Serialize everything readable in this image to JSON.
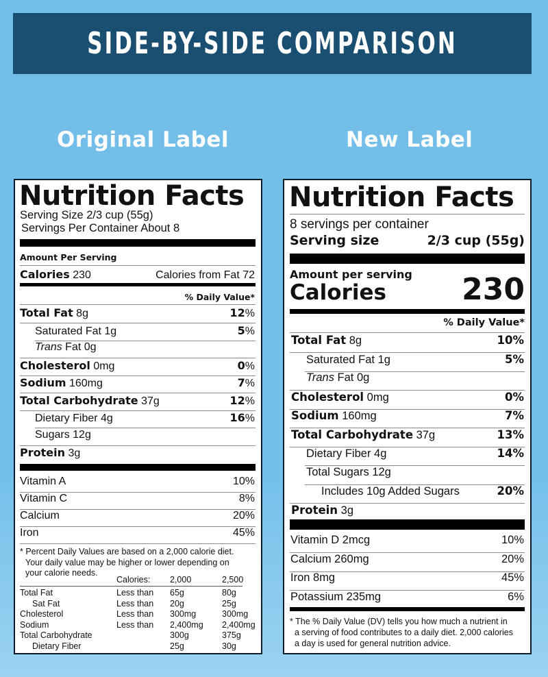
{
  "header": {
    "title": "SIDE-BY-SIDE COMPARISON"
  },
  "columns": {
    "original_title": "Original Label",
    "new_title": "New Label"
  },
  "colors": {
    "background": "#72bee9",
    "header_bar": "#1b4f72",
    "label_bg": "#ffffff",
    "text": "#111111"
  },
  "original": {
    "title": "Nutrition Facts",
    "serving_size": "Serving Size 2/3 cup (55g)",
    "servings_per_container": "Servings Per Container About 8",
    "amount_per_serving": "Amount Per Serving",
    "calories_label": "Calories",
    "calories_value": "230",
    "calories_from_fat": "Calories from Fat 72",
    "dv_header": "% Daily Value*",
    "nutrients": [
      {
        "name": "Total Fat",
        "amount": "8g",
        "dv": "12",
        "bold": true,
        "indent": 0
      },
      {
        "name": "Saturated Fat",
        "amount": "1g",
        "dv": "5",
        "bold": false,
        "indent": 1
      },
      {
        "name": "Trans",
        "name_rest": "Fat",
        "amount": "0g",
        "dv": "",
        "bold": false,
        "indent": 1,
        "italic": true
      },
      {
        "name": "Cholesterol",
        "amount": "0mg",
        "dv": "0",
        "bold": true,
        "indent": 0
      },
      {
        "name": "Sodium",
        "amount": "160mg",
        "dv": "7",
        "bold": true,
        "indent": 0
      },
      {
        "name": "Total Carbohydrate",
        "amount": "37g",
        "dv": "12",
        "bold": true,
        "indent": 0
      },
      {
        "name": "Dietary Fiber",
        "amount": "4g",
        "dv": "16",
        "bold": false,
        "indent": 1
      },
      {
        "name": "Sugars",
        "amount": "12g",
        "dv": "",
        "bold": false,
        "indent": 1
      },
      {
        "name": "Protein",
        "amount": "3g",
        "dv": "",
        "bold": true,
        "indent": 0
      }
    ],
    "pct_sign": "%",
    "vitamins": [
      {
        "name": "Vitamin A",
        "dv": "10%"
      },
      {
        "name": "Vitamin C",
        "dv": "8%"
      },
      {
        "name": "Calcium",
        "dv": "20%"
      },
      {
        "name": "Iron",
        "dv": "45%"
      }
    ],
    "footnote_lines": [
      "* Percent Daily Values are based on a 2,000 calorie diet.",
      "Your daily value may be higher or lower depending on",
      "your calorie needs."
    ],
    "table_header": {
      "label": "Calories:",
      "c1": "2,000",
      "c2": "2,500"
    },
    "table_rows": [
      {
        "name": "Total Fat",
        "cond": "Less than",
        "c1": "65g",
        "c2": "80g",
        "indent": false
      },
      {
        "name": "Sat Fat",
        "cond": "Less than",
        "c1": "20g",
        "c2": "25g",
        "indent": true
      },
      {
        "name": "Cholesterol",
        "cond": "Less than",
        "c1": "300mg",
        "c2": "300mg",
        "indent": false
      },
      {
        "name": "Sodium",
        "cond": "Less than",
        "c1": "2,400mg",
        "c2": "2,400mg",
        "indent": false
      },
      {
        "name": "Total Carbohydrate",
        "cond": "",
        "c1": "300g",
        "c2": "375g",
        "indent": false
      },
      {
        "name": "Dietary Fiber",
        "cond": "",
        "c1": "25g",
        "c2": "30g",
        "indent": true
      }
    ]
  },
  "new": {
    "title": "Nutrition Facts",
    "servings_per_container": "8 servings per container",
    "serving_size_label": "Serving size",
    "serving_size_value": "2/3 cup (55g)",
    "amount_per_serving": "Amount per serving",
    "calories_label": "Calories",
    "calories_value": "230",
    "dv_header": "% Daily Value*",
    "nutrients": [
      {
        "name": "Total Fat",
        "amount": "8g",
        "dv": "10%",
        "bold": true,
        "indent": 0
      },
      {
        "name": "Saturated Fat",
        "amount": "1g",
        "dv": "5%",
        "bold": false,
        "indent": 1
      },
      {
        "name": "Trans",
        "name_rest": "Fat",
        "amount": "0g",
        "dv": "",
        "bold": false,
        "indent": 1,
        "italic": true
      },
      {
        "name": "Cholesterol",
        "amount": "0mg",
        "dv": "0%",
        "bold": true,
        "indent": 0
      },
      {
        "name": "Sodium",
        "amount": "160mg",
        "dv": "7%",
        "bold": true,
        "indent": 0
      },
      {
        "name": "Total Carbohydrate",
        "amount": "37g",
        "dv": "13%",
        "bold": true,
        "indent": 0
      },
      {
        "name": "Dietary Fiber",
        "amount": "4g",
        "dv": "14%",
        "bold": false,
        "indent": 1
      },
      {
        "name": "Total Sugars",
        "amount": "12g",
        "dv": "",
        "bold": false,
        "indent": 1
      },
      {
        "name": "Includes 10g Added Sugars",
        "amount": "",
        "dv": "20%",
        "bold": false,
        "indent": 2
      },
      {
        "name": "Protein",
        "amount": "3g",
        "dv": "",
        "bold": true,
        "indent": 0
      }
    ],
    "vitamins": [
      {
        "name": "Vitamin D 2mcg",
        "dv": "10%"
      },
      {
        "name": "Calcium 260mg",
        "dv": "20%"
      },
      {
        "name": "Iron 8mg",
        "dv": "45%"
      },
      {
        "name": "Potassium 235mg",
        "dv": "6%"
      }
    ],
    "footnote_lines": [
      "* The % Daily Value (DV) tells you how much a nutrient in",
      "a serving of food contributes to a daily diet. 2,000 calories",
      "a day is used for general nutrition advice."
    ]
  }
}
